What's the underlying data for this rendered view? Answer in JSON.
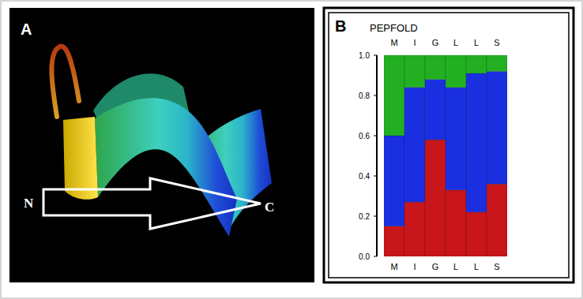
{
  "panel_a": {
    "label": "A",
    "n_label": "N",
    "c_label": "C"
  },
  "panel_b": {
    "label": "B"
  },
  "chart_data": {
    "type": "bar",
    "stacked": true,
    "title": "PEPFOLD",
    "categories": [
      "M",
      "I",
      "G",
      "L",
      "L",
      "S"
    ],
    "series": [
      {
        "color": "#c8161a",
        "values": [
          0.15,
          0.27,
          0.58,
          0.33,
          0.22,
          0.36
        ]
      },
      {
        "color": "#1a30e0",
        "values": [
          0.45,
          0.57,
          0.3,
          0.51,
          0.69,
          0.56
        ]
      },
      {
        "color": "#22b022",
        "values": [
          0.4,
          0.16,
          0.12,
          0.16,
          0.09,
          0.08
        ]
      }
    ],
    "ylim": [
      0,
      1
    ],
    "yticks": [
      {
        "value": 0,
        "label": "0.0"
      },
      {
        "value": 0.2,
        "label": "0.2"
      },
      {
        "value": 0.4,
        "label": "0.4"
      },
      {
        "value": 0.6,
        "label": "0.6"
      },
      {
        "value": 0.8,
        "label": "0.8"
      },
      {
        "value": 1,
        "label": "1.0"
      }
    ]
  }
}
